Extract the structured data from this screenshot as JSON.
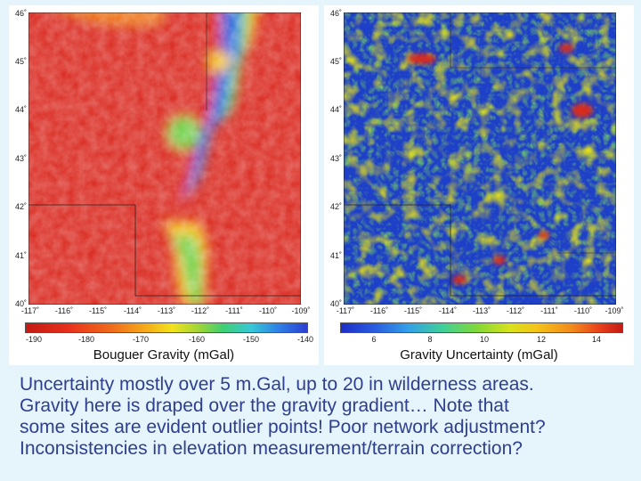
{
  "lat_ticks": [
    "46˚",
    "45˚",
    "44˚",
    "43˚",
    "42˚",
    "41˚",
    "40˚"
  ],
  "lon_ticks": [
    "-117˚",
    "-116˚",
    "-115˚",
    "-114˚",
    "-113˚",
    "-112˚",
    "-111˚",
    "-110˚",
    "-109˚"
  ],
  "left_panel": {
    "colorbar_ticks": [
      "-190",
      "-180",
      "-170",
      "-160",
      "-150",
      "-140"
    ],
    "colorbar_label": "Bouguer Gravity (mGal)"
  },
  "right_panel": {
    "colorbar_ticks": [
      "6",
      "8",
      "10",
      "12",
      "14"
    ],
    "colorbar_label": "Gravity Uncertainty (mGal)"
  },
  "caption_lines": [
    "Uncertainty mostly over 5 m.Gal, up to 20 in wilderness areas.",
    "Gravity here is draped over the gravity gradient… Note that",
    "some sites are evident outlier points! Poor network adjustment?",
    "Inconsistencies in elevation measurement/terrain correction?"
  ],
  "colors": {
    "background": "#e6f4fb",
    "caption_text": "#2f3f8f"
  }
}
